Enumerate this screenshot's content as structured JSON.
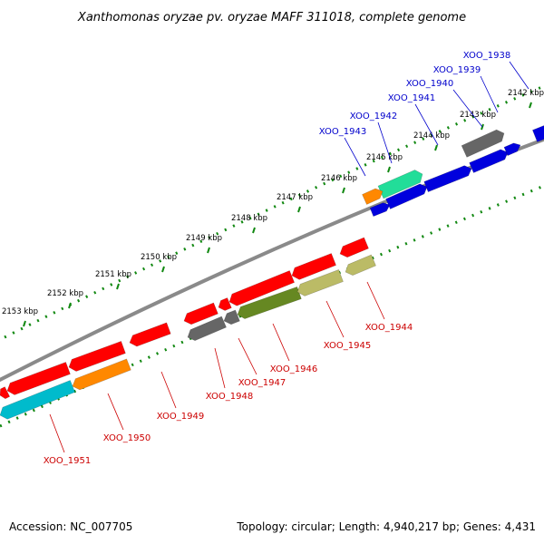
{
  "title": "Xanthomonas oryzae pv. oryzae MAFF 311018, complete genome",
  "footer": {
    "accession": "Accession: NC_007705",
    "topology": "Topology: circular; Length: 4,940,217 bp; Genes: 4,431"
  },
  "kbp_labels": [
    "2142 kbp",
    "2143 kbp",
    "2144 kbp",
    "2145 kbp",
    "2146 kbp",
    "2147 kbp",
    "2148 kbp",
    "2149 kbp",
    "2150 kbp",
    "2151 kbp",
    "2152 kbp",
    "2153 kbp"
  ],
  "genes_top": [
    {
      "label": "XOO_1938",
      "color": "#0000dd"
    },
    {
      "label": "XOO_1939",
      "color": "#666666"
    },
    {
      "label": "XOO_1940",
      "color": "#0000dd"
    },
    {
      "label": "XOO_1941",
      "color": "#0000dd"
    },
    {
      "label": "XOO_1942",
      "color": "#0000dd"
    },
    {
      "label": "XOO_1943",
      "color": "#22dd99"
    }
  ],
  "genes_bottom": [
    {
      "label": "XOO_1944",
      "color": "#bbbb66"
    },
    {
      "label": "XOO_1945",
      "color": "#bbbb66"
    },
    {
      "label": "XOO_1946",
      "color": "#668822"
    },
    {
      "label": "XOO_1947",
      "color": "#666666"
    },
    {
      "label": "XOO_1948",
      "color": "#666666"
    },
    {
      "label": "XOO_1949",
      "color": "#ff0000"
    },
    {
      "label": "XOO_1950",
      "color": "#ff8800"
    },
    {
      "label": "XOO_1951",
      "color": "#00bbcc"
    }
  ]
}
